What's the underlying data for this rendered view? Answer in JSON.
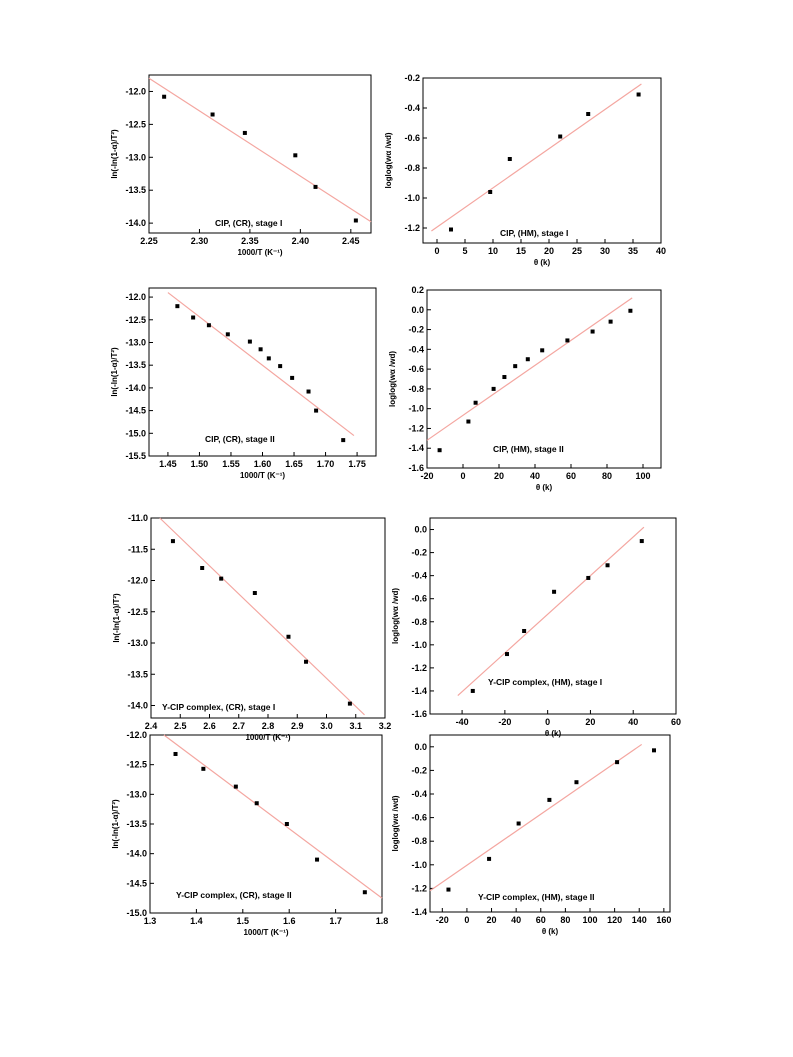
{
  "chart_data": [
    {
      "type": "scatter",
      "annotation": "CIP, (CR), stage I",
      "xlabel": "1000/T (K⁻¹)",
      "ylabel": "ln(-ln(1-α)/T²)",
      "xlim": [
        2.25,
        2.47
      ],
      "ylim": [
        -14.15,
        -11.75
      ],
      "xticks": [
        2.25,
        2.3,
        2.35,
        2.4,
        2.45
      ],
      "xtick_labels": [
        "2.25",
        "2.30",
        "2.35",
        "2.40",
        "2.45"
      ],
      "yticks": [
        -12.0,
        -12.5,
        -13.0,
        -13.5,
        -14.0
      ],
      "ytick_labels": [
        "-12.0",
        "-12.5",
        "-13.0",
        "-13.5",
        "-14.0"
      ],
      "x": [
        2.265,
        2.313,
        2.345,
        2.395,
        2.415,
        2.455
      ],
      "y": [
        -12.08,
        -12.35,
        -12.63,
        -12.97,
        -13.45,
        -13.96
      ],
      "fit": {
        "x": [
          2.25,
          2.47
        ],
        "y": [
          -11.8,
          -13.98
        ]
      }
    },
    {
      "type": "scatter",
      "annotation": "CIP, (HM),  stage I",
      "xlabel": "θ (k)",
      "ylabel": "loglog(wα /wd)",
      "xlim": [
        -2.5,
        40
      ],
      "ylim": [
        -1.3,
        -0.2
      ],
      "xticks": [
        0,
        5,
        10,
        15,
        20,
        25,
        30,
        35,
        40
      ],
      "xtick_labels": [
        "0",
        "5",
        "10",
        "15",
        "20",
        "25",
        "30",
        "35",
        "40"
      ],
      "yticks": [
        -0.2,
        -0.4,
        -0.6,
        -0.8,
        -1.0,
        -1.2
      ],
      "ytick_labels": [
        "-0.2",
        "-0.4",
        "-0.6",
        "-0.8",
        "-1.0",
        "-1.2"
      ],
      "x": [
        2.5,
        9.5,
        13,
        22,
        27,
        36
      ],
      "y": [
        -1.21,
        -0.96,
        -0.74,
        -0.59,
        -0.44,
        -0.31
      ],
      "fit": {
        "x": [
          -1,
          36.5
        ],
        "y": [
          -1.22,
          -0.24
        ]
      }
    },
    {
      "type": "scatter",
      "annotation": "CIP,  (CR), stage II",
      "xlabel": "1000/T (K⁻¹)",
      "ylabel": "ln(-ln(1-α)/T²)",
      "xlim": [
        1.42,
        1.78
      ],
      "ylim": [
        -15.5,
        -11.8
      ],
      "xticks": [
        1.45,
        1.5,
        1.55,
        1.6,
        1.65,
        1.7,
        1.75
      ],
      "xtick_labels": [
        "1.45",
        "1.50",
        "1.55",
        "1.60",
        "1.65",
        "1.70",
        "1.75"
      ],
      "yticks": [
        -12.0,
        -12.5,
        -13.0,
        -13.5,
        -14.0,
        -14.5,
        -15.0,
        -15.5
      ],
      "ytick_labels": [
        "-12.0",
        "-12.5",
        "-13.0",
        "-13.5",
        "-14.0",
        "-14.5",
        "-15.0",
        "-15.5"
      ],
      "x": [
        1.465,
        1.49,
        1.515,
        1.545,
        1.58,
        1.597,
        1.61,
        1.628,
        1.647,
        1.673,
        1.685,
        1.728
      ],
      "y": [
        -12.2,
        -12.45,
        -12.62,
        -12.82,
        -12.98,
        -13.15,
        -13.35,
        -13.52,
        -13.78,
        -14.08,
        -14.5,
        -15.15
      ],
      "fit": {
        "x": [
          1.45,
          1.745
        ],
        "y": [
          -11.9,
          -15.05
        ]
      }
    },
    {
      "type": "scatter",
      "annotation": "CIP, (HM), stage II",
      "xlabel": "θ (k)",
      "ylabel": "loglog(wα /wd)",
      "xlim": [
        -20,
        110
      ],
      "ylim": [
        -1.6,
        0.2
      ],
      "xticks": [
        -20,
        0,
        20,
        40,
        60,
        80,
        100
      ],
      "xtick_labels": [
        "-20",
        "0",
        "20",
        "40",
        "60",
        "80",
        "100"
      ],
      "yticks": [
        0.2,
        0.0,
        -0.2,
        -0.4,
        -0.6,
        -0.8,
        -1.0,
        -1.2,
        -1.4,
        -1.6
      ],
      "ytick_labels": [
        "0.2",
        "0.0",
        "-0.2",
        "-0.4",
        "-0.6",
        "-0.8",
        "-1.0",
        "-1.2",
        "-1.4",
        "-1.6"
      ],
      "x": [
        -13,
        3,
        7,
        17,
        23,
        29,
        36,
        44,
        58,
        72,
        82,
        93
      ],
      "y": [
        -1.42,
        -1.13,
        -0.94,
        -0.8,
        -0.68,
        -0.57,
        -0.5,
        -0.41,
        -0.31,
        -0.22,
        -0.12,
        -0.01
      ],
      "fit": {
        "x": [
          -20,
          94
        ],
        "y": [
          -1.32,
          0.12
        ]
      }
    },
    {
      "type": "scatter",
      "annotation": "Y-CIP complex, (CR), stage I",
      "xlabel": "1000/T (K⁻¹)",
      "ylabel": "ln(-ln(1-α)/T²)",
      "xlim": [
        2.4,
        3.2
      ],
      "ylim": [
        -14.2,
        -11.0
      ],
      "xticks": [
        2.4,
        2.5,
        2.6,
        2.7,
        2.8,
        2.9,
        3.0,
        3.1,
        3.2
      ],
      "xtick_labels": [
        "2.4",
        "2.5",
        "2.6",
        "2.7",
        "2.8",
        "2.9",
        "3.0",
        "3.1",
        "3.2"
      ],
      "yticks": [
        -11.0,
        -11.5,
        -12.0,
        -12.5,
        -13.0,
        -13.5,
        -14.0
      ],
      "ytick_labels": [
        "-11.0",
        "-11.5",
        "-12.0",
        "-12.5",
        "-13.0",
        "-13.5",
        "-14.0"
      ],
      "x": [
        2.475,
        2.575,
        2.64,
        2.755,
        2.87,
        2.93,
        3.08
      ],
      "y": [
        -11.37,
        -11.8,
        -11.97,
        -12.2,
        -12.9,
        -13.3,
        -13.97
      ],
      "fit": {
        "x": [
          2.43,
          3.13
        ],
        "y": [
          -11.0,
          -14.15
        ]
      }
    },
    {
      "type": "scatter",
      "annotation": "Y-CIP complex, (HM), stage I",
      "xlabel": "θ (k)",
      "ylabel": "loglog(wα /wd)",
      "xlim": [
        -55,
        60
      ],
      "ylim": [
        -1.6,
        0.1
      ],
      "xticks": [
        -40,
        -20,
        0,
        20,
        40,
        60
      ],
      "xtick_labels": [
        "-40",
        "-20",
        "0",
        "20",
        "40",
        "60"
      ],
      "yticks": [
        0.0,
        -0.2,
        -0.4,
        -0.6,
        -0.8,
        -1.0,
        -1.2,
        -1.4,
        -1.6
      ],
      "ytick_labels": [
        "0.0",
        "-0.2",
        "-0.4",
        "-0.6",
        "-0.8",
        "-1.0",
        "-1.2",
        "-1.4",
        "-1.6"
      ],
      "x": [
        -35,
        -19,
        -11,
        3,
        19,
        28,
        44
      ],
      "y": [
        -1.4,
        -1.08,
        -0.88,
        -0.54,
        -0.42,
        -0.31,
        -0.1
      ],
      "fit": {
        "x": [
          -42,
          45
        ],
        "y": [
          -1.44,
          0.02
        ]
      }
    },
    {
      "type": "scatter",
      "annotation": "Y-CIP complex, (CR), stage II",
      "xlabel": "1000/T (K⁻¹)",
      "ylabel": "ln(-ln(1-α)/T²)",
      "xlim": [
        1.3,
        1.8
      ],
      "ylim": [
        -15.0,
        -12.0
      ],
      "xticks": [
        1.3,
        1.4,
        1.5,
        1.6,
        1.7,
        1.8
      ],
      "xtick_labels": [
        "1.3",
        "1.4",
        "1.5",
        "1.6",
        "1.7",
        "1.8"
      ],
      "yticks": [
        -12.0,
        -12.5,
        -13.0,
        -13.5,
        -14.0,
        -14.5,
        -15.0
      ],
      "ytick_labels": [
        "-12.0",
        "-12.5",
        "-13.0",
        "-13.5",
        "-14.0",
        "-14.5",
        "-15.0"
      ],
      "x": [
        1.355,
        1.415,
        1.485,
        1.53,
        1.595,
        1.66,
        1.763
      ],
      "y": [
        -12.32,
        -12.57,
        -12.87,
        -13.15,
        -13.5,
        -14.1,
        -14.65
      ],
      "fit": {
        "x": [
          1.33,
          1.8
        ],
        "y": [
          -12.0,
          -14.75
        ]
      }
    },
    {
      "type": "scatter",
      "annotation": "Y-CIP complex, (HM), stage II",
      "xlabel": "θ (k)",
      "ylabel": "loglog(wα /wd)",
      "xlim": [
        -30,
        165
      ],
      "ylim": [
        -1.4,
        0.1
      ],
      "xticks": [
        -20,
        0,
        20,
        40,
        60,
        80,
        100,
        120,
        140,
        160
      ],
      "xtick_labels": [
        "-20",
        "0",
        "20",
        "40",
        "60",
        "80",
        "100",
        "120",
        "140",
        "160"
      ],
      "yticks": [
        0.0,
        -0.2,
        -0.4,
        -0.6,
        -0.8,
        -1.0,
        -1.2,
        -1.4
      ],
      "ytick_labels": [
        "0.0",
        "-0.2",
        "-0.4",
        "-0.6",
        "-0.8",
        "-1.0",
        "-1.2",
        "-1.4"
      ],
      "x": [
        -15,
        18,
        42,
        67,
        89,
        122,
        152
      ],
      "y": [
        -1.21,
        -0.95,
        -0.65,
        -0.45,
        -0.3,
        -0.13,
        -0.03
      ],
      "fit": {
        "x": [
          -30,
          142
        ],
        "y": [
          -1.22,
          0.02
        ]
      }
    }
  ]
}
